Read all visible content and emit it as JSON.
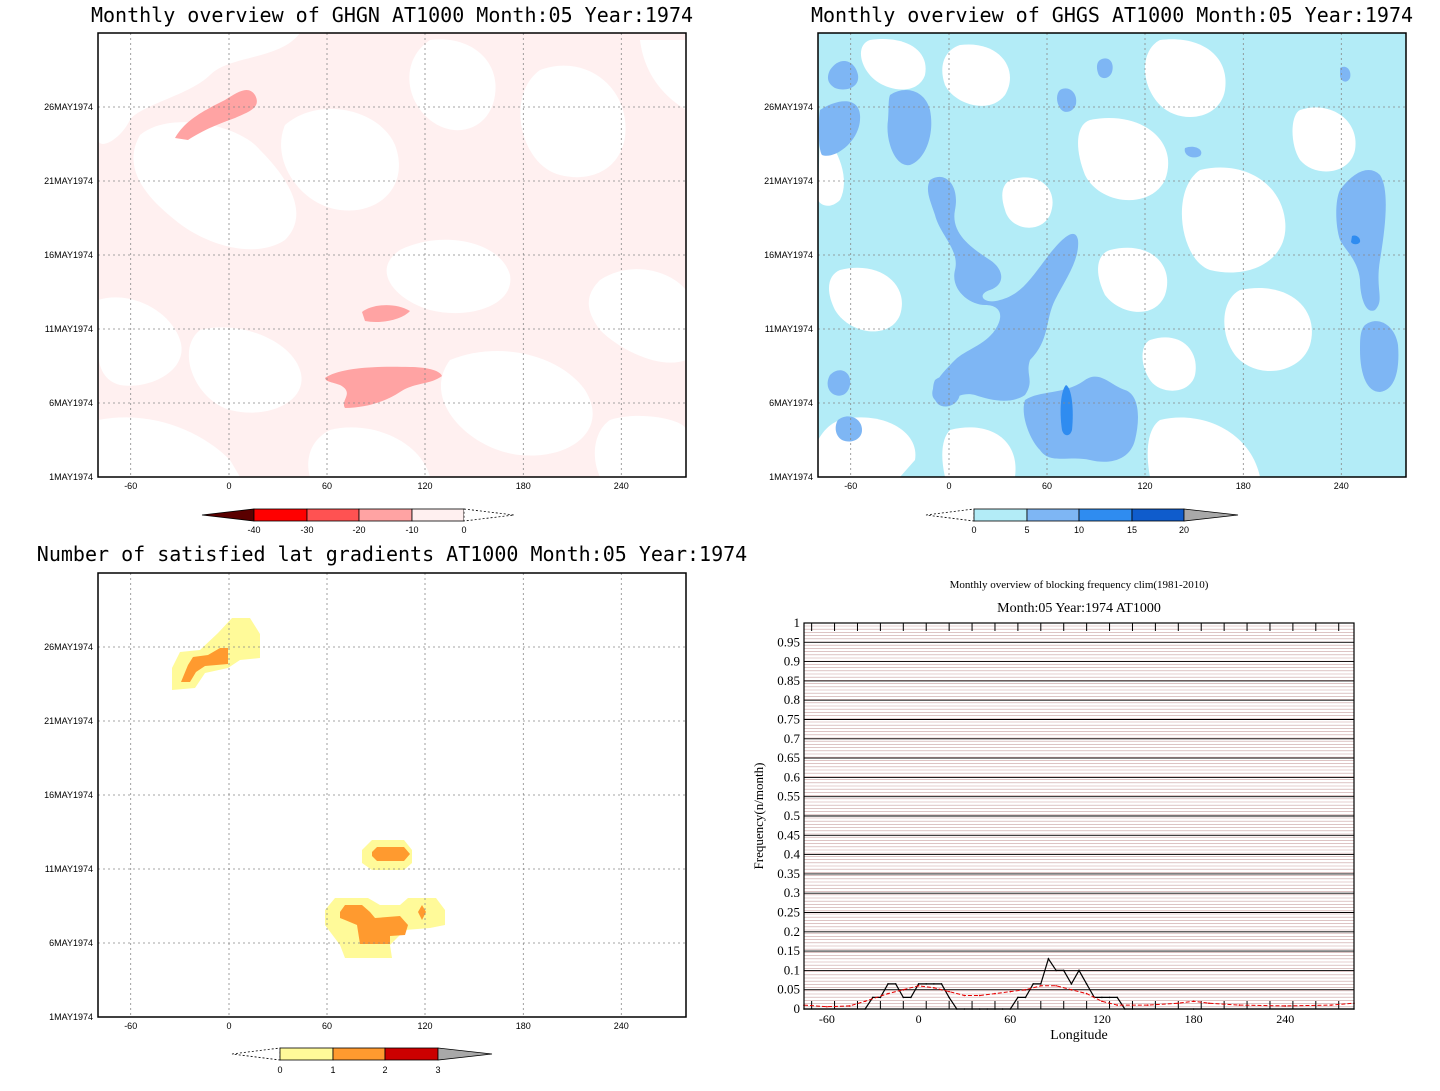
{
  "colors": {
    "red_1": "#fff0f0",
    "red_2": "#ffa3a3",
    "red_3": "#ff5252",
    "red_4": "#ff0000",
    "red_5": "#5a0000",
    "blue_1": "#b3ecf7",
    "blue_2": "#7eb6f4",
    "blue_3": "#2f8cf0",
    "blue_4": "#0f5ccc",
    "blue_over": "#a8a8a8",
    "yel_1": "#fffa99",
    "yel_2": "#ff9a2f",
    "yel_3": "#cc0000",
    "yel_over": "#a8a8a8",
    "hatch": "#c9a0a0",
    "line_black": "#000000",
    "line_red": "#e60000"
  },
  "map_axes": {
    "x_ticks": [
      "-60",
      "0",
      "60",
      "120",
      "180",
      "240"
    ],
    "y_ticks": [
      "1MAY1974",
      "6MAY1974",
      "11MAY1974",
      "16MAY1974",
      "21MAY1974",
      "26MAY1974"
    ]
  },
  "panels": {
    "ghgn": {
      "title": "Monthly overview of GHGN AT1000 Month:05 Year:1974",
      "colorbar_labels": [
        "-40",
        "-30",
        "-20",
        "-10",
        "0"
      ]
    },
    "ghgs": {
      "title": "Monthly overview of GHGS AT1000 Month:05 Year:1974",
      "colorbar_labels": [
        "0",
        "5",
        "10",
        "15",
        "20"
      ]
    },
    "gradients": {
      "title": "Number of satisfied lat gradients AT1000 Month:05 Year:1974",
      "colorbar_labels": [
        "0",
        "1",
        "2",
        "3"
      ]
    },
    "frequency": {
      "title": "Monthly overview of blocking frequency clim(1981-2010)",
      "subtitle": "Month:05 Year:1974  AT1000",
      "xlabel": "Longitude",
      "ylabel": "Frequency(n/month)",
      "x_ticks": [
        "-60",
        "0",
        "60",
        "120",
        "180",
        "240"
      ],
      "y_ticks": [
        "0",
        "0.05",
        "0.1",
        "0.15",
        "0.2",
        "0.25",
        "0.3",
        "0.35",
        "0.4",
        "0.45",
        "0.5",
        "0.55",
        "0.6",
        "0.65",
        "0.7",
        "0.75",
        "0.8",
        "0.85",
        "0.9",
        "0.95",
        "1"
      ]
    }
  },
  "chart_data": [
    {
      "type": "heatmap",
      "title": "Monthly overview of GHGN AT1000 Month:05 Year:1974",
      "x_range": [
        -75,
        285
      ],
      "y_range": [
        "1MAY1974",
        "31MAY1974"
      ],
      "color_levels": [
        -40,
        -30,
        -20,
        -10,
        0
      ],
      "note_regions": [
        {
          "lon": [
            -30,
            15
          ],
          "date": [
            "24MAY1974",
            "26MAY1974"
          ],
          "level": "-20 to -10"
        },
        {
          "lon": [
            80,
            110
          ],
          "date": [
            "11MAY1974",
            "12MAY1974"
          ],
          "level": "-20 to -10"
        },
        {
          "lon": [
            60,
            130
          ],
          "date": [
            "5MAY1974",
            "8MAY1974"
          ],
          "level": "-20 to -10"
        }
      ]
    },
    {
      "type": "heatmap",
      "title": "Monthly overview of GHGS AT1000 Month:05 Year:1974",
      "x_range": [
        -75,
        285
      ],
      "y_range": [
        "1MAY1974",
        "31MAY1974"
      ],
      "color_levels": [
        0,
        5,
        10,
        15,
        20
      ]
    },
    {
      "type": "heatmap",
      "title": "Number of satisfied lat gradients AT1000 Month:05 Year:1974",
      "x_range": [
        -75,
        285
      ],
      "y_range": [
        "1MAY1974",
        "31MAY1974"
      ],
      "color_levels": [
        0,
        1,
        2,
        3
      ],
      "regions": [
        {
          "lon": [
            -35,
            20
          ],
          "date": [
            "24MAY1974",
            "29MAY1974"
          ],
          "value": 1
        },
        {
          "lon": [
            -30,
            0
          ],
          "date": [
            "25MAY1974",
            "26MAY1974"
          ],
          "value": 2
        },
        {
          "lon": [
            80,
            110
          ],
          "date": [
            "11MAY1974",
            "13MAY1974"
          ],
          "value": 2
        },
        {
          "lon": [
            60,
            135
          ],
          "date": [
            "5MAY1974",
            "9MAY1974"
          ],
          "value": 2
        }
      ]
    },
    {
      "type": "line",
      "title": "Monthly overview of blocking frequency clim(1981-2010)",
      "xlabel": "Longitude",
      "ylabel": "Frequency(n/month)",
      "xlim": [
        -75,
        285
      ],
      "ylim": [
        0,
        1
      ],
      "series": [
        {
          "x": [
            -75,
            -35,
            -30,
            -25,
            -20,
            -15,
            -10,
            -5,
            0,
            5,
            10,
            15,
            20,
            25,
            30,
            35,
            40,
            45,
            50,
            55,
            60,
            65,
            70,
            75,
            80,
            85,
            90,
            95,
            100,
            105,
            110,
            115,
            120,
            125,
            130,
            135,
            140,
            180,
            285
          ],
          "values": [
            0,
            0,
            0.03,
            0.03,
            0.065,
            0.065,
            0.03,
            0.03,
            0.065,
            0.065,
            0.065,
            0.065,
            0.03,
            0,
            0,
            0,
            0,
            0,
            0,
            0,
            0,
            0.03,
            0.03,
            0.065,
            0.065,
            0.13,
            0.1,
            0.1,
            0.065,
            0.1,
            0.065,
            0.03,
            0.03,
            0.03,
            0.03,
            0,
            0,
            0,
            0
          ]
        },
        {
          "x": [
            -75,
            -60,
            -45,
            -35,
            -20,
            -10,
            0,
            10,
            20,
            30,
            40,
            50,
            60,
            70,
            80,
            90,
            100,
            110,
            120,
            130,
            150,
            170,
            180,
            190,
            210,
            240,
            270,
            285
          ],
          "values": [
            0.01,
            0.006,
            0.008,
            0.02,
            0.04,
            0.05,
            0.06,
            0.055,
            0.045,
            0.035,
            0.035,
            0.04,
            0.045,
            0.05,
            0.06,
            0.06,
            0.05,
            0.04,
            0.02,
            0.01,
            0.01,
            0.015,
            0.02,
            0.015,
            0.01,
            0.008,
            0.01,
            0.015
          ]
        }
      ]
    }
  ]
}
